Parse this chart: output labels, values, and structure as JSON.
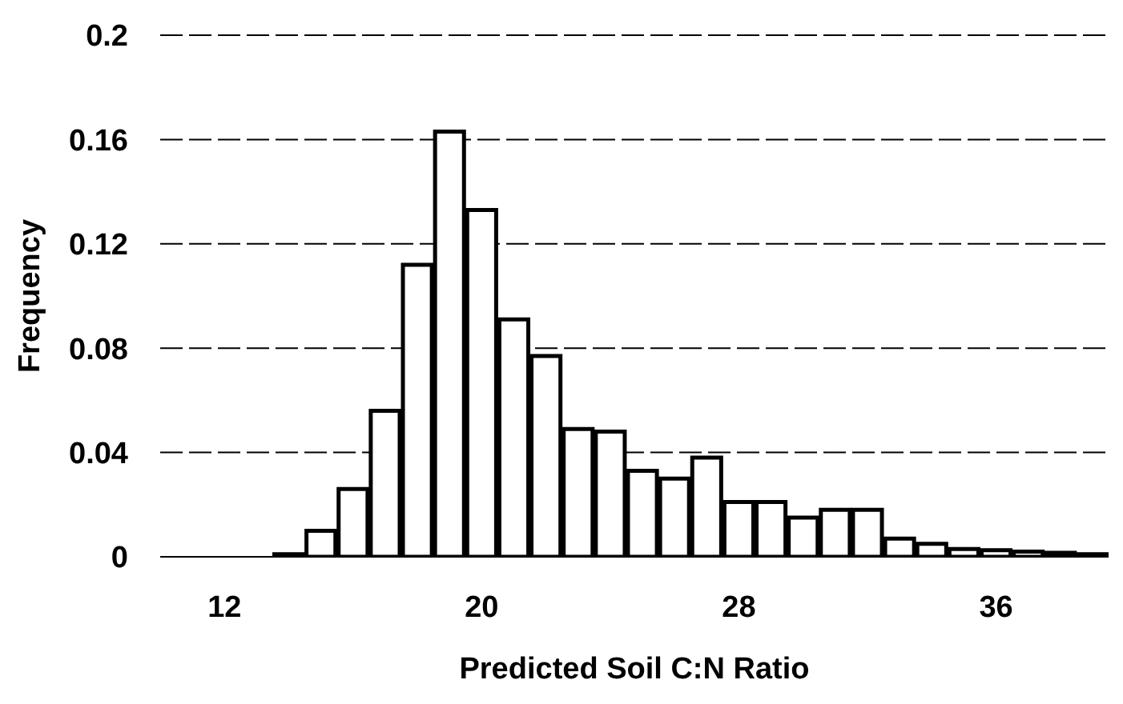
{
  "chart_data": {
    "type": "histogram",
    "xlabel": "Predicted Soil C:N Ratio",
    "ylabel": "Frequency",
    "bins": [
      13.5,
      14.5,
      15.5,
      16.5,
      17.5,
      18.5,
      19.5,
      20.5,
      21.5,
      22.5,
      23.5,
      24.5,
      25.5,
      26.5,
      27.5,
      28.5,
      29.5,
      30.5,
      31.5,
      32.5,
      33.5,
      34.5,
      35.5,
      36.5,
      37.5,
      38.5,
      39.5
    ],
    "values": [
      0.001,
      0.01,
      0.026,
      0.056,
      0.112,
      0.163,
      0.133,
      0.091,
      0.077,
      0.049,
      0.048,
      0.033,
      0.03,
      0.038,
      0.021,
      0.021,
      0.015,
      0.018,
      0.018,
      0.007,
      0.005,
      0.003,
      0.0025,
      0.002,
      0.0015,
      0.001
    ],
    "color": "#ffffff",
    "xlim": [
      10,
      39.5
    ],
    "xticks": [
      12,
      20,
      28,
      36
    ],
    "ylim": [
      0,
      0.2
    ],
    "yticks": [
      0,
      0.04,
      0.08,
      0.12,
      0.16,
      0.2
    ],
    "grid": "y"
  }
}
